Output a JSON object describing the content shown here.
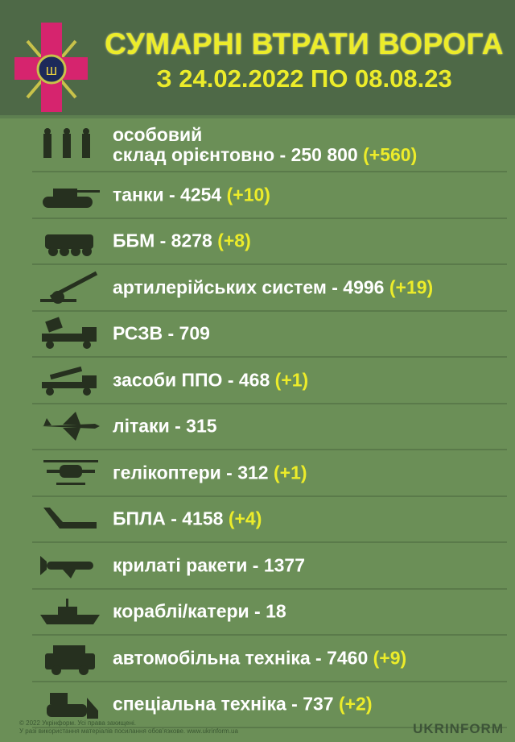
{
  "header": {
    "title": "СУМАРНІ ВТРАТИ ВОРОГА",
    "subtitle": "З 24.02.2022 ПО 08.08.23"
  },
  "colors": {
    "header_bg": "#4e6947",
    "body_bg": "#6b8f57",
    "highlight": "#ecec2a",
    "text": "#ffffff",
    "icon": "#26301f"
  },
  "items": [
    {
      "icon": "soldiers-icon",
      "label_line1": "особовий",
      "label": "склад орієнтовно - 250 800",
      "delta": "(+560)"
    },
    {
      "icon": "tank-icon",
      "label": "танки - 4254",
      "delta": "(+10)"
    },
    {
      "icon": "apc-icon",
      "label": "ББМ - 8278",
      "delta": "(+8)"
    },
    {
      "icon": "artillery-icon",
      "label": "артилерійських систем - 4996",
      "delta": "(+19)"
    },
    {
      "icon": "mlrs-icon",
      "label": "РСЗВ - 709",
      "delta": ""
    },
    {
      "icon": "air-defense-icon",
      "label": "засоби ППО - 468",
      "delta": "(+1)"
    },
    {
      "icon": "jet-icon",
      "label": "літаки - 315",
      "delta": ""
    },
    {
      "icon": "helicopter-icon",
      "label": "гелікоптери - 312",
      "delta": "(+1)"
    },
    {
      "icon": "drone-icon",
      "label": "БПЛА - 4158",
      "delta": "(+4)"
    },
    {
      "icon": "missile-icon",
      "label": "крилаті ракети - 1377",
      "delta": ""
    },
    {
      "icon": "ship-icon",
      "label": "кораблі/катери - 18",
      "delta": ""
    },
    {
      "icon": "vehicle-icon",
      "label": "автомобільна техніка - 7460",
      "delta": "(+9)"
    },
    {
      "icon": "bulldozer-icon",
      "label": "спеціальна техніка - 737",
      "delta": "(+2)"
    }
  ],
  "footer": {
    "line1": "© 2022 Укрінформ. Усі права захищені.",
    "line2": "У разі використання матеріалів посилання обов'язкове. www.ukrinform.ua",
    "brand": "UKRINFORM"
  }
}
